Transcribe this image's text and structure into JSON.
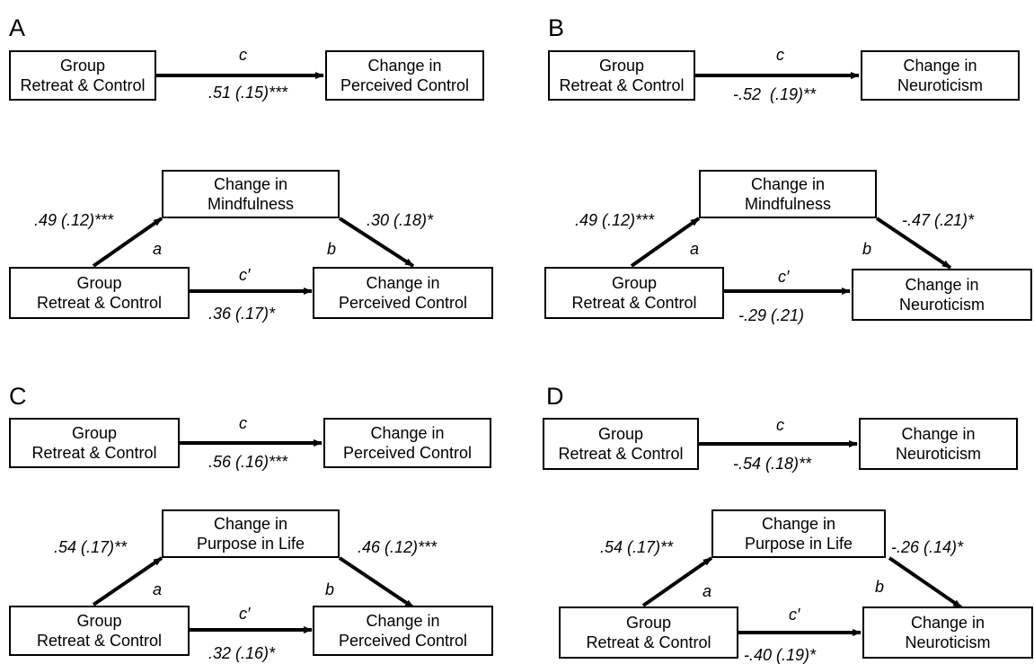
{
  "panels": [
    {
      "label": "A",
      "group_box": [
        "Group",
        "Retreat & Control"
      ],
      "outcome_box": [
        "Change in",
        "Perceived Control"
      ],
      "mediator_box": [
        "Change in",
        "Mindfulness"
      ],
      "total_path": {
        "name": "c",
        "coef": ".51 (.15)***"
      },
      "a_path": {
        "name": "a",
        "coef": ".49 (.12)***"
      },
      "b_path": {
        "name": "b",
        "coef": ".30 (.18)*"
      },
      "direct_path": {
        "name": "c′",
        "coef": ".36 (.17)*"
      }
    },
    {
      "label": "B",
      "group_box": [
        "Group",
        "Retreat & Control"
      ],
      "outcome_box": [
        "Change in",
        "Neuroticism"
      ],
      "mediator_box": [
        "Change in",
        "Mindfulness"
      ],
      "total_path": {
        "name": "c",
        "coef": "-.52  (.19)**"
      },
      "a_path": {
        "name": "a",
        "coef": ".49 (.12)***"
      },
      "b_path": {
        "name": "b",
        "coef": "-.47 (.21)*"
      },
      "direct_path": {
        "name": "c′",
        "coef": "-.29 (.21)"
      }
    },
    {
      "label": "C",
      "group_box": [
        "Group",
        "Retreat & Control"
      ],
      "outcome_box": [
        "Change in",
        "Perceived Control"
      ],
      "mediator_box": [
        "Change in",
        "Purpose in Life"
      ],
      "total_path": {
        "name": "c",
        "coef": ".56 (.16)***"
      },
      "a_path": {
        "name": "a",
        "coef": ".54 (.17)**"
      },
      "b_path": {
        "name": "b",
        "coef": ".46 (.12)***"
      },
      "direct_path": {
        "name": "c′",
        "coef": ".32 (.16)*"
      }
    },
    {
      "label": "D",
      "group_box": [
        "Group",
        "Retreat & Control"
      ],
      "outcome_box": [
        "Change in",
        "Neuroticism"
      ],
      "mediator_box": [
        "Change in",
        "Purpose in Life"
      ],
      "total_path": {
        "name": "c",
        "coef": "-.54 (.18)**"
      },
      "a_path": {
        "name": "a",
        "coef": ".54 (.17)**"
      },
      "b_path": {
        "name": "b",
        "coef": "-.26 (.14)*"
      },
      "direct_path": {
        "name": "c′",
        "coef": "-.40 (.19)*"
      }
    }
  ]
}
